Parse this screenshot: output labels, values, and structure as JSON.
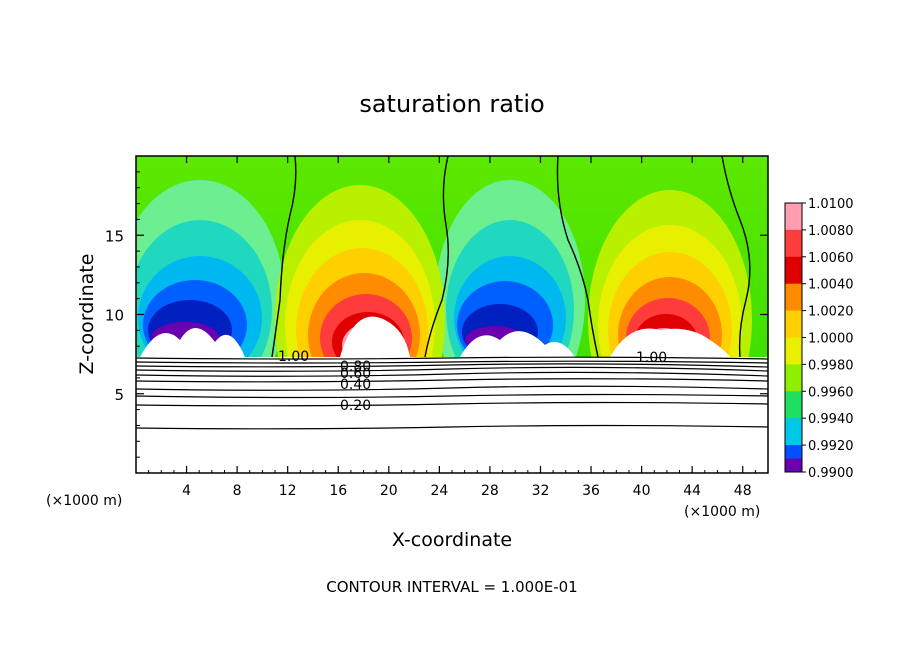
{
  "chart_data": {
    "type": "heatmap",
    "title": "saturation ratio",
    "xlabel": "X-coordinate",
    "ylabel": "Z-coordinate",
    "x_unit_left": "(×1000 m)",
    "x_unit_right": "(×1000 m)",
    "footer": "CONTOUR INTERVAL = 1.000E-01",
    "xlim": [
      0,
      50
    ],
    "ylim": [
      0,
      20
    ],
    "x_ticks": [
      "4",
      "8",
      "12",
      "16",
      "20",
      "24",
      "28",
      "32",
      "36",
      "40",
      "44",
      "48"
    ],
    "y_ticks": [
      "5",
      "10",
      "15"
    ],
    "colorbar": {
      "levels": [
        "1.0100",
        "1.0080",
        "1.0060",
        "1.0040",
        "1.0020",
        "1.0000",
        "0.9980",
        "0.9960",
        "0.9940",
        "0.9920",
        "0.9900"
      ],
      "colors": [
        "#ff9db1",
        "#ff3c3c",
        "#e00000",
        "#ff8c00",
        "#ffd000",
        "#e8f000",
        "#8ef000",
        "#20e060",
        "#00c8e8",
        "#0050ff",
        "#6a00b0"
      ]
    },
    "contour_labels": [
      "1.00",
      "0.80",
      "0.60",
      "0.40",
      "0.20",
      "1.00"
    ],
    "cloud_base_km": 7.2,
    "high_humidity_centers_km": [
      {
        "x": 18.5,
        "z": 9.6,
        "value": 1.01
      },
      {
        "x": 41.0,
        "z": 9.6,
        "value": 1.01
      }
    ],
    "low_humidity_centers_km": [
      {
        "x": 4.5,
        "z": 10.0,
        "value": 0.99
      },
      {
        "x": 29.0,
        "z": 10.0,
        "value": 0.99
      }
    ],
    "contour_levels_below_base": [
      1.0,
      0.9,
      0.8,
      0.7,
      0.6,
      0.5,
      0.4,
      0.3,
      0.2,
      0.1
    ]
  }
}
